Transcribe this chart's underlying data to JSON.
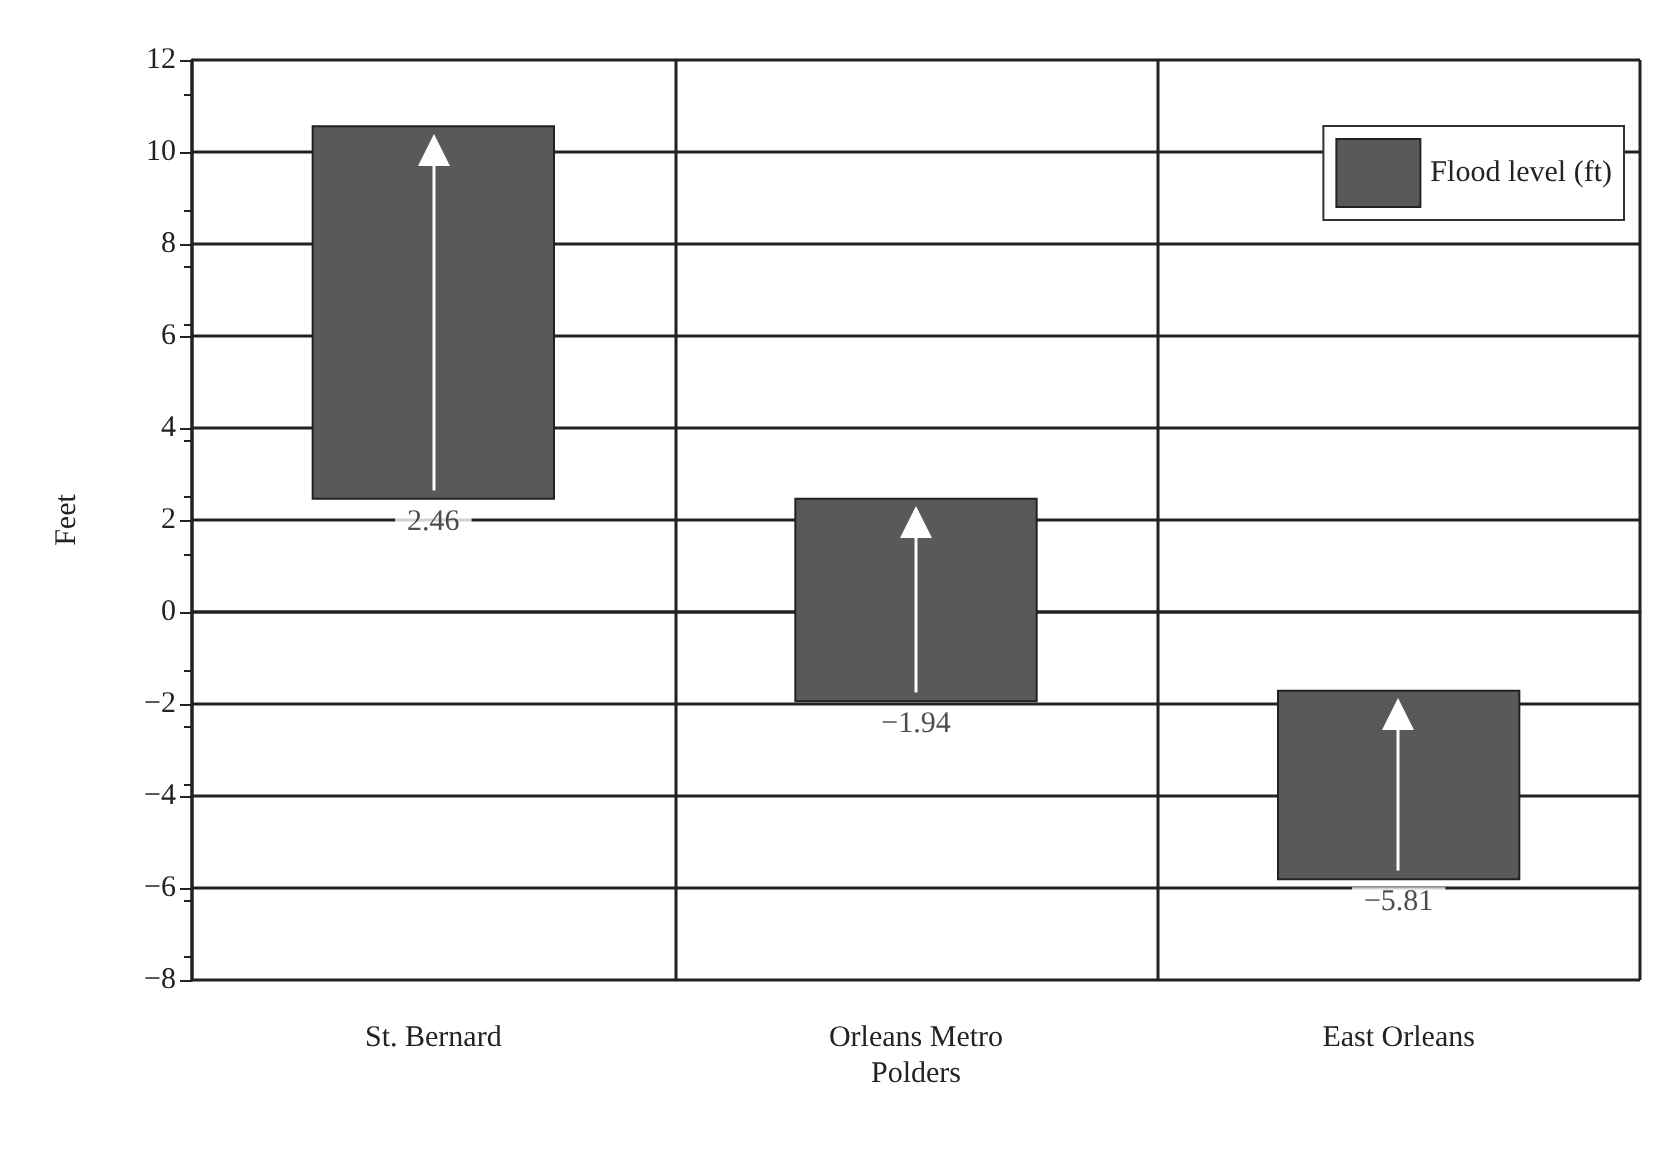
{
  "chart_data": {
    "type": "bar",
    "ylabel": "Feet",
    "categories": [
      "St. Bernard",
      "Orleans Metro\nPolders",
      "East Orleans"
    ],
    "series": [
      {
        "name": "Flood level (ft)",
        "color": "#595959",
        "values": [
          8.1,
          4.4,
          4.1
        ],
        "base": [
          2.46,
          -1.94,
          -5.81
        ]
      }
    ],
    "annotations": [
      {
        "text": "2.46",
        "x": "St. Bernard",
        "y": 2.46
      },
      {
        "text": "−1.94",
        "x": "Orleans Metro\nPolders",
        "y": -1.94
      },
      {
        "text": "−5.81",
        "x": "East Orleans",
        "y": -5.81
      }
    ],
    "ylim": [
      -8,
      12
    ],
    "yticks": [
      {
        "value": -8,
        "label": "−8"
      },
      {
        "value": -6,
        "label": "−6"
      },
      {
        "value": -4,
        "label": "−4"
      },
      {
        "value": -2,
        "label": "−2"
      },
      0,
      2,
      4,
      6,
      8,
      10,
      12
    ],
    "grid": true,
    "legend": "top right"
  }
}
